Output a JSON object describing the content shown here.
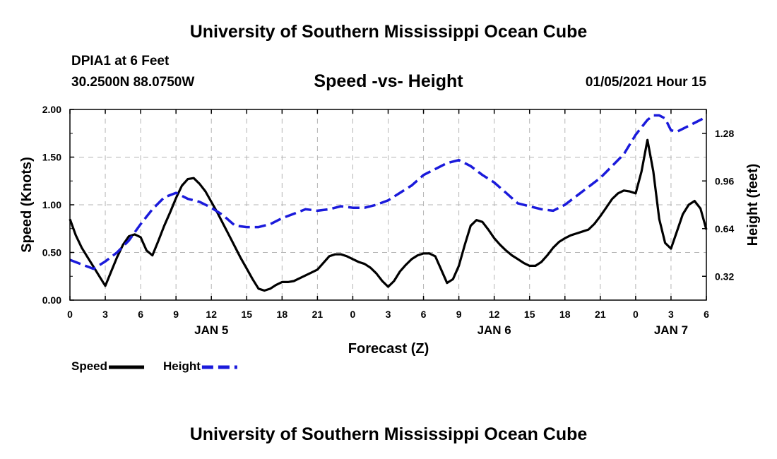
{
  "header": {
    "title": "University of Southern Mississippi Ocean Cube",
    "station": "DPIA1 at 6 Feet",
    "coords": "30.2500N 88.0750W",
    "subtitle": "Speed -vs- Height",
    "datetime": "01/05/2021 Hour 15"
  },
  "footer": {
    "title": "University of Southern Mississippi Ocean Cube"
  },
  "colors": {
    "speed": "#000000",
    "height": "#1a1adb",
    "grid": "#b4b4b4"
  },
  "chart_data": {
    "type": "line",
    "title": "Speed -vs- Height",
    "xlabel": "Forecast (Z)",
    "ylabel": "Speed (Knots)",
    "y2label": "Height (feet)",
    "grid": true,
    "x_range_hours": [
      0,
      54
    ],
    "x_ticks": [
      {
        "h": 0,
        "label": "0"
      },
      {
        "h": 3,
        "label": "3"
      },
      {
        "h": 6,
        "label": "6"
      },
      {
        "h": 9,
        "label": "9"
      },
      {
        "h": 12,
        "label": "12"
      },
      {
        "h": 15,
        "label": "15"
      },
      {
        "h": 18,
        "label": "18"
      },
      {
        "h": 21,
        "label": "21"
      },
      {
        "h": 24,
        "label": "0"
      },
      {
        "h": 27,
        "label": "3"
      },
      {
        "h": 30,
        "label": "6"
      },
      {
        "h": 33,
        "label": "9"
      },
      {
        "h": 36,
        "label": "12"
      },
      {
        "h": 39,
        "label": "15"
      },
      {
        "h": 42,
        "label": "18"
      },
      {
        "h": 45,
        "label": "21"
      },
      {
        "h": 48,
        "label": "0"
      },
      {
        "h": 51,
        "label": "3"
      },
      {
        "h": 54,
        "label": "6"
      }
    ],
    "day_labels": [
      {
        "h": 12,
        "label": "JAN 5"
      },
      {
        "h": 36,
        "label": "JAN 6"
      },
      {
        "h": 51,
        "label": "JAN 7"
      }
    ],
    "y_left": {
      "range": [
        0,
        2.0
      ],
      "ticks": [
        "0.00",
        "0.50",
        "1.00",
        "1.50",
        "2.00"
      ]
    },
    "y_right": {
      "range": [
        0.16,
        1.44
      ],
      "ticks": [
        "0.32",
        "0.64",
        "0.96",
        "1.28"
      ]
    },
    "series": [
      {
        "name": "Speed",
        "axis": "left",
        "style": "solid",
        "points": [
          [
            0,
            0.85
          ],
          [
            0.5,
            0.68
          ],
          [
            1,
            0.55
          ],
          [
            1.5,
            0.45
          ],
          [
            2,
            0.35
          ],
          [
            2.5,
            0.25
          ],
          [
            3,
            0.15
          ],
          [
            3.5,
            0.3
          ],
          [
            4,
            0.45
          ],
          [
            4.5,
            0.58
          ],
          [
            5,
            0.67
          ],
          [
            5.5,
            0.69
          ],
          [
            6,
            0.66
          ],
          [
            6.5,
            0.52
          ],
          [
            7,
            0.47
          ],
          [
            7.5,
            0.62
          ],
          [
            8,
            0.78
          ],
          [
            8.5,
            0.92
          ],
          [
            9,
            1.07
          ],
          [
            9.5,
            1.2
          ],
          [
            10,
            1.27
          ],
          [
            10.5,
            1.28
          ],
          [
            11,
            1.22
          ],
          [
            11.5,
            1.14
          ],
          [
            12,
            1.03
          ],
          [
            12.5,
            0.92
          ],
          [
            13,
            0.8
          ],
          [
            13.5,
            0.68
          ],
          [
            14,
            0.56
          ],
          [
            14.5,
            0.44
          ],
          [
            15,
            0.33
          ],
          [
            15.5,
            0.22
          ],
          [
            16,
            0.12
          ],
          [
            16.5,
            0.1
          ],
          [
            17,
            0.12
          ],
          [
            17.5,
            0.16
          ],
          [
            18,
            0.19
          ],
          [
            18.5,
            0.19
          ],
          [
            19,
            0.2
          ],
          [
            19.5,
            0.23
          ],
          [
            20,
            0.26
          ],
          [
            20.5,
            0.29
          ],
          [
            21,
            0.32
          ],
          [
            21.5,
            0.39
          ],
          [
            22,
            0.46
          ],
          [
            22.5,
            0.48
          ],
          [
            23,
            0.48
          ],
          [
            23.5,
            0.46
          ],
          [
            24,
            0.43
          ],
          [
            24.5,
            0.4
          ],
          [
            25,
            0.38
          ],
          [
            25.5,
            0.34
          ],
          [
            26,
            0.28
          ],
          [
            26.5,
            0.2
          ],
          [
            27,
            0.14
          ],
          [
            27.5,
            0.2
          ],
          [
            28,
            0.3
          ],
          [
            28.5,
            0.37
          ],
          [
            29,
            0.43
          ],
          [
            29.5,
            0.47
          ],
          [
            30,
            0.49
          ],
          [
            30.5,
            0.49
          ],
          [
            31,
            0.46
          ],
          [
            31.5,
            0.32
          ],
          [
            32,
            0.18
          ],
          [
            32.5,
            0.22
          ],
          [
            33,
            0.36
          ],
          [
            33.5,
            0.58
          ],
          [
            34,
            0.78
          ],
          [
            34.5,
            0.84
          ],
          [
            35,
            0.82
          ],
          [
            35.5,
            0.74
          ],
          [
            36,
            0.65
          ],
          [
            36.5,
            0.58
          ],
          [
            37,
            0.52
          ],
          [
            37.5,
            0.47
          ],
          [
            38,
            0.43
          ],
          [
            38.5,
            0.39
          ],
          [
            39,
            0.36
          ],
          [
            39.5,
            0.36
          ],
          [
            40,
            0.4
          ],
          [
            40.5,
            0.47
          ],
          [
            41,
            0.55
          ],
          [
            41.5,
            0.61
          ],
          [
            42,
            0.65
          ],
          [
            42.5,
            0.68
          ],
          [
            43,
            0.7
          ],
          [
            43.5,
            0.72
          ],
          [
            44,
            0.74
          ],
          [
            44.5,
            0.8
          ],
          [
            45,
            0.88
          ],
          [
            45.5,
            0.97
          ],
          [
            46,
            1.06
          ],
          [
            46.5,
            1.12
          ],
          [
            47,
            1.15
          ],
          [
            47.5,
            1.14
          ],
          [
            48,
            1.12
          ],
          [
            48.5,
            1.35
          ],
          [
            49,
            1.68
          ],
          [
            49.5,
            1.35
          ],
          [
            50,
            0.85
          ],
          [
            50.5,
            0.6
          ],
          [
            51,
            0.54
          ],
          [
            51.5,
            0.72
          ],
          [
            52,
            0.9
          ],
          [
            52.5,
            1.0
          ],
          [
            53,
            1.04
          ],
          [
            53.5,
            0.96
          ],
          [
            54,
            0.74
          ]
        ]
      },
      {
        "name": "Height",
        "axis": "right",
        "style": "dashed",
        "points": [
          [
            0,
            0.43
          ],
          [
            1,
            0.4
          ],
          [
            2,
            0.37
          ],
          [
            3,
            0.42
          ],
          [
            4,
            0.48
          ],
          [
            5,
            0.56
          ],
          [
            6,
            0.67
          ],
          [
            7,
            0.77
          ],
          [
            8,
            0.85
          ],
          [
            9,
            0.88
          ],
          [
            10,
            0.84
          ],
          [
            11,
            0.82
          ],
          [
            12,
            0.78
          ],
          [
            13,
            0.73
          ],
          [
            14,
            0.66
          ],
          [
            15,
            0.65
          ],
          [
            16,
            0.65
          ],
          [
            17,
            0.67
          ],
          [
            18,
            0.71
          ],
          [
            19,
            0.74
          ],
          [
            20,
            0.77
          ],
          [
            21,
            0.76
          ],
          [
            22,
            0.77
          ],
          [
            23,
            0.79
          ],
          [
            24,
            0.78
          ],
          [
            25,
            0.78
          ],
          [
            26,
            0.8
          ],
          [
            27,
            0.83
          ],
          [
            28,
            0.88
          ],
          [
            29,
            0.93
          ],
          [
            30,
            1.0
          ],
          [
            31,
            1.04
          ],
          [
            32,
            1.08
          ],
          [
            33,
            1.1
          ],
          [
            34,
            1.06
          ],
          [
            35,
            1.0
          ],
          [
            36,
            0.95
          ],
          [
            37,
            0.88
          ],
          [
            38,
            0.81
          ],
          [
            39,
            0.79
          ],
          [
            40,
            0.77
          ],
          [
            41,
            0.76
          ],
          [
            42,
            0.8
          ],
          [
            43,
            0.86
          ],
          [
            44,
            0.92
          ],
          [
            45,
            0.98
          ],
          [
            46,
            1.06
          ],
          [
            47,
            1.14
          ],
          [
            48,
            1.27
          ],
          [
            48.5,
            1.32
          ],
          [
            49,
            1.37
          ],
          [
            49.5,
            1.4
          ],
          [
            50,
            1.4
          ],
          [
            50.5,
            1.38
          ],
          [
            51,
            1.3
          ],
          [
            51.5,
            1.29
          ],
          [
            52,
            1.31
          ],
          [
            53,
            1.35
          ],
          [
            54,
            1.39
          ]
        ]
      }
    ],
    "legend": [
      {
        "label": "Speed",
        "style": "solid"
      },
      {
        "label": "Height",
        "style": "dashed"
      }
    ]
  }
}
